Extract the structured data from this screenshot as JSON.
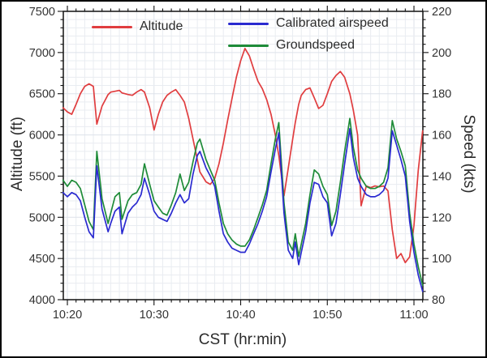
{
  "chart_data": {
    "type": "line",
    "title": "",
    "xlabel": "CST (hr:min)",
    "ylabel_left": "Altitude (ft)",
    "ylabel_right": "Speed (kts)",
    "grid": "on",
    "legend_position": "top-inside",
    "x_unit": "minutes after 10:00 CST",
    "x_range": [
      19.53,
      61.03
    ],
    "x_ticks": [
      {
        "v": 20,
        "label": "10:20"
      },
      {
        "v": 30,
        "label": "10:30"
      },
      {
        "v": 40,
        "label": "10:40"
      },
      {
        "v": 50,
        "label": "10:50"
      },
      {
        "v": 60,
        "label": "11:00"
      }
    ],
    "x_minor_step": 1,
    "left_axis": {
      "range": [
        4000,
        7500
      ],
      "ticks": [
        7500,
        7000,
        6500,
        6000,
        5500,
        5000,
        4500,
        4000
      ],
      "minor_step": 100
    },
    "right_axis": {
      "range": [
        80,
        220
      ],
      "ticks": [
        220,
        200,
        180,
        160,
        140,
        120,
        100,
        80
      ],
      "minor_step": 4
    },
    "colors": {
      "altitude": "#e03d3f",
      "calibrated_airspeed": "#2a2ad0",
      "groundspeed": "#1e8b38",
      "grid_minor": "#e9ecf1",
      "grid_major": "#dde2ea",
      "axis": "#111111",
      "text": "#2b2b2b"
    },
    "x": [
      19.5,
      20,
      20.5,
      21,
      21.5,
      22,
      22.5,
      23,
      23.4,
      24,
      24.7,
      25,
      25.5,
      26,
      26.3,
      27,
      27.5,
      28,
      28.5,
      28.9,
      29.5,
      30,
      30.5,
      31,
      31.5,
      32,
      32.5,
      33,
      33.5,
      34,
      34.5,
      35,
      35.3,
      36,
      36.5,
      37,
      37.5,
      38,
      38.5,
      39,
      39.5,
      40,
      40.5,
      41,
      41.5,
      42,
      42.5,
      43,
      43.5,
      44,
      44.4,
      45,
      45.5,
      46,
      46.3,
      46.7,
      47,
      47.5,
      48,
      48.5,
      49,
      49.5,
      50,
      50.5,
      51,
      51.5,
      52,
      52.6,
      53,
      53.5,
      53.9,
      54.5,
      55,
      55.5,
      56,
      56.5,
      57,
      57.5,
      58,
      58.5,
      59,
      59.5,
      60,
      60.5,
      61
    ],
    "series": [
      {
        "name": "Altitude",
        "color": "#e03d3f",
        "axis": "left",
        "values": [
          6330,
          6280,
          6250,
          6370,
          6500,
          6590,
          6620,
          6590,
          6130,
          6350,
          6490,
          6520,
          6530,
          6540,
          6510,
          6490,
          6480,
          6520,
          6550,
          6520,
          6330,
          6060,
          6250,
          6400,
          6480,
          6520,
          6550,
          6480,
          6400,
          6200,
          5950,
          5700,
          5550,
          5430,
          5400,
          5470,
          5650,
          5900,
          6180,
          6440,
          6700,
          6900,
          7050,
          6960,
          6800,
          6650,
          6560,
          6430,
          6250,
          6000,
          5750,
          5260,
          5600,
          5950,
          6150,
          6370,
          6480,
          6550,
          6570,
          6450,
          6320,
          6360,
          6500,
          6650,
          6720,
          6770,
          6700,
          6500,
          6300,
          6000,
          5140,
          5380,
          5360,
          5380,
          5370,
          5380,
          5320,
          4850,
          4500,
          4560,
          4450,
          4520,
          4900,
          5570,
          6050
        ]
      },
      {
        "name": "Calibrated airspeed",
        "color": "#2a2ad0",
        "axis": "right",
        "values": [
          132,
          130,
          132,
          131,
          128,
          120,
          113,
          110,
          145,
          124,
          113,
          117,
          123,
          125,
          112,
          122,
          125,
          127,
          131,
          139,
          131,
          123,
          120,
          119,
          118,
          122,
          127,
          131,
          127,
          129,
          141,
          150,
          152,
          144,
          140,
          135,
          123,
          112,
          108,
          105,
          104,
          103,
          103,
          107,
          112,
          117,
          123,
          130,
          142,
          153,
          161,
          122,
          104,
          100,
          108,
          97,
          103,
          113,
          127,
          137,
          136,
          130,
          127,
          111,
          117,
          131,
          146,
          163,
          149,
          139,
          135,
          131,
          130,
          130,
          131,
          133,
          139,
          162,
          155,
          148,
          140,
          118,
          103,
          92,
          84
        ]
      },
      {
        "name": "Groundspeed",
        "color": "#1e8b38",
        "axis": "right",
        "values": [
          138,
          135,
          138,
          137,
          134,
          126,
          118,
          114,
          152,
          129,
          117,
          122,
          130,
          132,
          119,
          128,
          131,
          132,
          136,
          146,
          136,
          128,
          125,
          122,
          121,
          126,
          132,
          141,
          133,
          137,
          147,
          156,
          158,
          148,
          143,
          138,
          127,
          117,
          112,
          109,
          107,
          106,
          106,
          109,
          114,
          120,
          126,
          133,
          146,
          158,
          166,
          127,
          108,
          104,
          112,
          101,
          107,
          117,
          131,
          143,
          141,
          135,
          131,
          116,
          123,
          137,
          152,
          168,
          154,
          143,
          139,
          135,
          134,
          134,
          135,
          137,
          144,
          167,
          158,
          152,
          145,
          122,
          107,
          96,
          87
        ]
      }
    ]
  }
}
